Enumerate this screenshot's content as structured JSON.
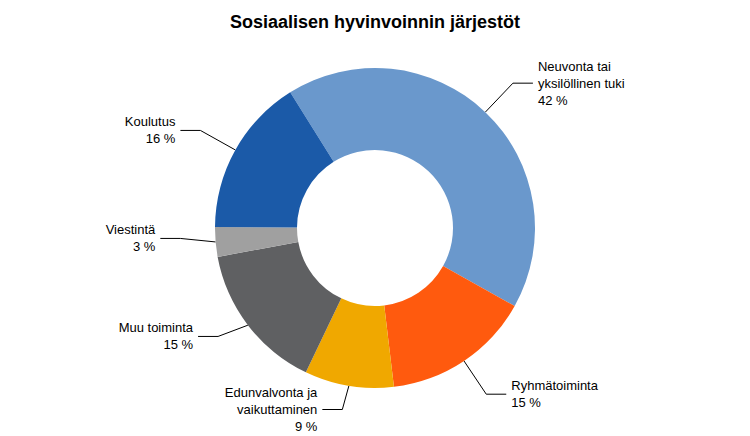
{
  "chart_data": {
    "type": "pie",
    "title": "Sosiaalisen hyvinvoinnin järjestöt",
    "categories": [
      "Neuvonta tai\nyksilöllinen tuki",
      "Ryhmätoiminta",
      "Edunvalvonta ja\nvaikuttaminen",
      "Muu toiminta",
      "Viestintä",
      "Koulutus"
    ],
    "values": [
      42,
      15,
      9,
      15,
      3,
      16
    ],
    "value_labels": [
      "42 %",
      "15 %",
      "9 %",
      "15 %",
      "3 %",
      "16 %"
    ],
    "colors": [
      "#6a98cc",
      "#ff5a0e",
      "#f0a800",
      "#5f6062",
      "#a0a0a0",
      "#1b5aa8"
    ],
    "data_labels": true
  }
}
